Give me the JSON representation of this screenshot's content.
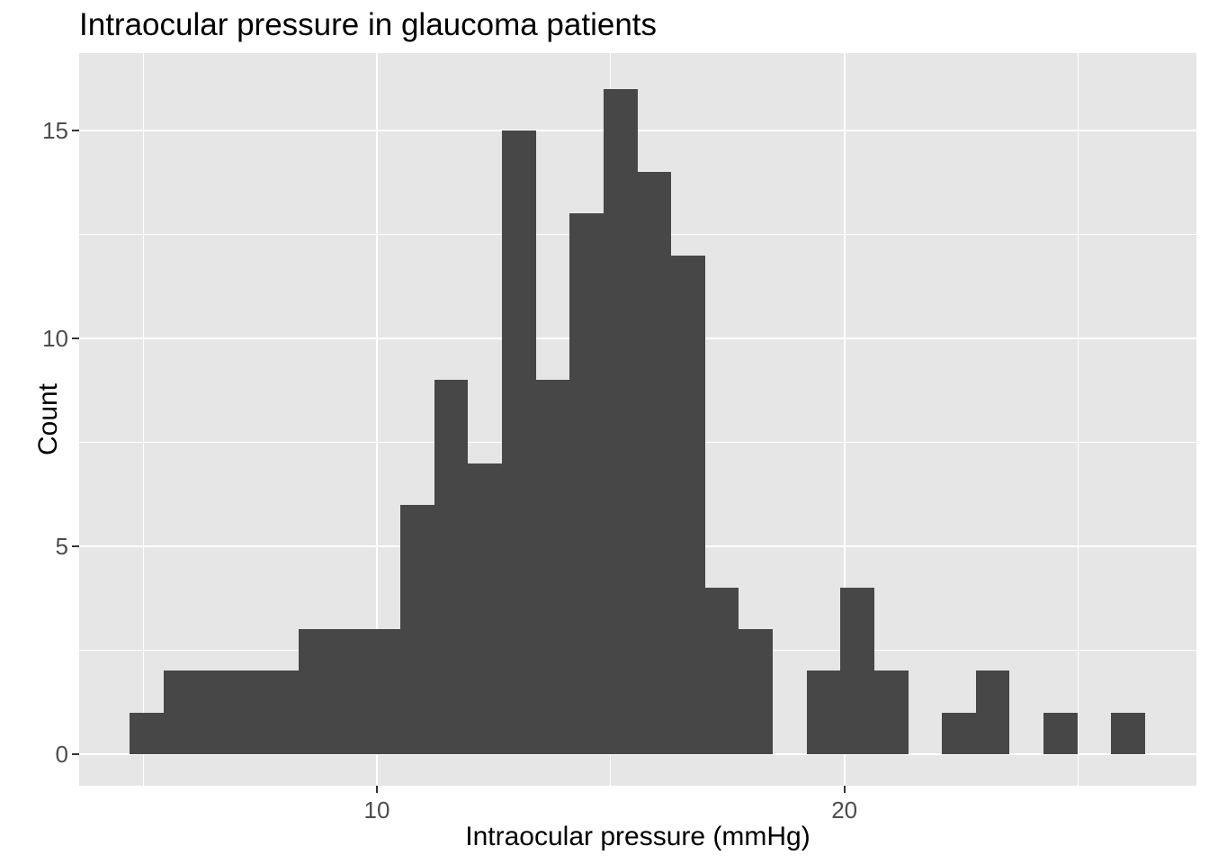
{
  "figure": {
    "kind": "static-plot"
  },
  "chart_data": {
    "type": "bar",
    "subtype": "histogram",
    "title": "Intraocular pressure in glaucoma patients",
    "xlabel": "Intraocular pressure (mmHg)",
    "ylabel": "Count",
    "bins": {
      "start": 4.71,
      "width": 0.7241
    },
    "counts": [
      1,
      2,
      2,
      2,
      2,
      3,
      3,
      3,
      6,
      9,
      7,
      15,
      9,
      13,
      16,
      14,
      12,
      4,
      3,
      0,
      2,
      4,
      2,
      0,
      1,
      2,
      0,
      1,
      0,
      1
    ],
    "x_ticks": [
      {
        "value": 10,
        "label": "10"
      },
      {
        "value": 20,
        "label": "20"
      }
    ],
    "y_ticks": [
      {
        "value": 0,
        "label": "0"
      },
      {
        "value": 5,
        "label": "5"
      },
      {
        "value": 10,
        "label": "10"
      },
      {
        "value": 15,
        "label": "15"
      }
    ],
    "x_minor_gridlines": [
      5,
      15,
      25
    ],
    "y_minor_gridlines": [
      2.5,
      7.5,
      12.5
    ],
    "x_range": [
      3.63,
      27.53
    ],
    "y_range": [
      -0.76,
      16.86
    ],
    "grid": true,
    "legend_position": "none",
    "colors": {
      "bar": "#474747",
      "panel_background": "#E6E6E6",
      "gridline": "#FFFFFF",
      "tick_label": "#4D4D4D",
      "tick_mark": "#333333",
      "axis_title": "#000000",
      "title": "#000000",
      "page_background": "#FFFFFF"
    }
  }
}
